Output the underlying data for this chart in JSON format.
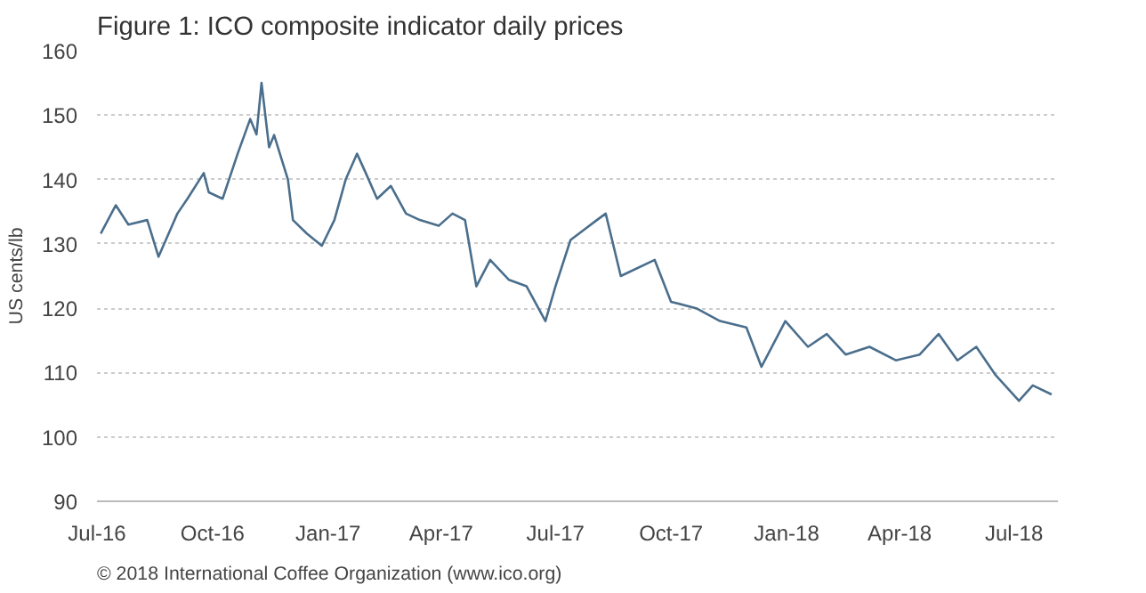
{
  "chart_data": {
    "type": "line",
    "title": "Figure 1: ICO composite indicator daily prices",
    "ylabel": "US cents/lb",
    "annotations": [
      "© 2018 International Coffee Organization (www.ico.org)"
    ],
    "series": [
      {
        "color": "#4a6e8c",
        "x": [
          "2016-07-04",
          "2016-07-16",
          "2016-07-26",
          "2016-08-10",
          "2016-08-19",
          "2016-09-03",
          "2016-09-11",
          "2016-09-24",
          "2016-09-28",
          "2016-10-09",
          "2016-10-21",
          "2016-10-31",
          "2016-11-05",
          "2016-11-09",
          "2016-11-15",
          "2016-11-19",
          "2016-11-30",
          "2016-12-04",
          "2016-12-15",
          "2016-12-27",
          "2017-01-06",
          "2017-01-15",
          "2017-01-24",
          "2017-01-31",
          "2017-02-09",
          "2017-02-20",
          "2017-03-04",
          "2017-03-15",
          "2017-03-30",
          "2017-04-10",
          "2017-04-20",
          "2017-04-29",
          "2017-05-10",
          "2017-05-25",
          "2017-06-08",
          "2017-06-23",
          "2017-07-01",
          "2017-07-13",
          "2017-08-03",
          "2017-08-10",
          "2017-08-22",
          "2017-09-18",
          "2017-10-01",
          "2017-10-21",
          "2017-11-09",
          "2017-11-30",
          "2017-12-12",
          "2017-12-31",
          "2018-01-18",
          "2018-02-02",
          "2018-02-17",
          "2018-03-08",
          "2018-03-29",
          "2018-04-17",
          "2018-05-02",
          "2018-05-17",
          "2018-06-01",
          "2018-06-16",
          "2018-07-05",
          "2018-07-16",
          "2018-07-31"
        ],
        "values": [
          131.6,
          136,
          133,
          133.7,
          128,
          134.7,
          137,
          141,
          138,
          137,
          144,
          149.4,
          147,
          155,
          145,
          146.9,
          140,
          133.7,
          131.6,
          129.7,
          133.7,
          140,
          144,
          141,
          137,
          139,
          134.7,
          133.7,
          132.8,
          134.7,
          133.7,
          123.4,
          127.5,
          124.4,
          123.4,
          118,
          123.4,
          130.6,
          133.7,
          134.7,
          125,
          127.5,
          121,
          120,
          118,
          117,
          110.9,
          118,
          114,
          116,
          112.8,
          114,
          111.9,
          112.8,
          116,
          111.9,
          114,
          109.7,
          105.6,
          108,
          106.6
        ]
      }
    ],
    "xlim": [
      "2016-07-01",
      "2018-08-05"
    ],
    "xticks": [
      {
        "value": "2016-07-01",
        "label": "Jul-16"
      },
      {
        "value": "2016-10-01",
        "label": "Oct-16"
      },
      {
        "value": "2017-01-01",
        "label": "Jan-17"
      },
      {
        "value": "2017-04-01",
        "label": "Apr-17"
      },
      {
        "value": "2017-07-01",
        "label": "Jul-17"
      },
      {
        "value": "2017-10-01",
        "label": "Oct-17"
      },
      {
        "value": "2018-01-01",
        "label": "Jan-18"
      },
      {
        "value": "2018-04-01",
        "label": "Apr-18"
      },
      {
        "value": "2018-07-01",
        "label": "Jul-18"
      }
    ],
    "ylim": [
      90,
      160
    ],
    "yticks": [
      90,
      100,
      110,
      120,
      130,
      140,
      150,
      160
    ],
    "grid": "y",
    "marker": "none",
    "line_style": "solid"
  }
}
